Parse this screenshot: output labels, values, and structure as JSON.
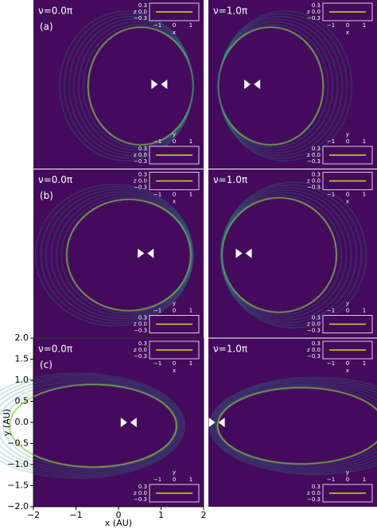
{
  "figure": {
    "panels": [
      {
        "tag": "(a)",
        "nu": "ν=0.0π"
      },
      {
        "nu": "ν=1.0π"
      },
      {
        "tag": "(b)",
        "nu": "ν=0.0π"
      },
      {
        "nu": "ν=1.0π"
      },
      {
        "tag": "(c)",
        "nu": "ν=0.0π"
      },
      {
        "nu": "ν=1.0π"
      }
    ],
    "x_label": "x (AU)",
    "y_label": "y (AU)",
    "xticks": [
      "−2",
      "−1",
      "0",
      "1",
      "2"
    ],
    "yticks": [
      "2.0",
      "1.5",
      "1.0",
      "0.5",
      "0.0",
      "−0.5",
      "−1.0",
      "−1.5",
      "−2.0"
    ],
    "inset": {
      "z_label": "z",
      "z_ticks": [
        "0.3",
        "0.0",
        "−0.3"
      ],
      "h_ticks": [
        "−1",
        "0",
        "1"
      ],
      "x_label": "x",
      "y_label": "y"
    }
  }
}
